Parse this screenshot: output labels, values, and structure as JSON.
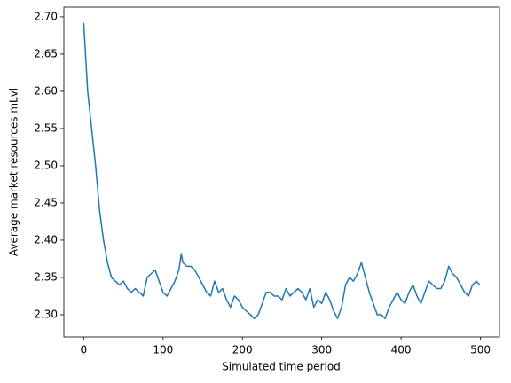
{
  "chart_data": {
    "type": "line",
    "xlabel": "Simulated time period",
    "ylabel": "Average market resources mLvl",
    "color": "#1f77b4",
    "x": [
      0,
      5,
      10,
      15,
      20,
      25,
      30,
      35,
      40,
      45,
      50,
      55,
      60,
      65,
      70,
      75,
      80,
      85,
      90,
      95,
      100,
      105,
      110,
      115,
      120,
      123,
      125,
      130,
      135,
      140,
      145,
      150,
      155,
      160,
      165,
      170,
      175,
      180,
      185,
      190,
      195,
      200,
      205,
      210,
      215,
      220,
      225,
      230,
      235,
      240,
      245,
      250,
      255,
      260,
      265,
      270,
      275,
      280,
      285,
      290,
      295,
      300,
      305,
      310,
      315,
      320,
      325,
      330,
      335,
      340,
      345,
      350,
      355,
      360,
      365,
      370,
      375,
      380,
      385,
      390,
      395,
      400,
      405,
      410,
      415,
      420,
      425,
      430,
      435,
      440,
      445,
      450,
      455,
      460,
      465,
      470,
      475,
      480,
      485,
      490,
      495,
      499
    ],
    "values": [
      2.692,
      2.6,
      2.55,
      2.5,
      2.44,
      2.4,
      2.37,
      2.35,
      2.345,
      2.34,
      2.345,
      2.335,
      2.33,
      2.335,
      2.33,
      2.325,
      2.35,
      2.355,
      2.36,
      2.345,
      2.33,
      2.325,
      2.335,
      2.345,
      2.36,
      2.382,
      2.37,
      2.365,
      2.365,
      2.36,
      2.35,
      2.34,
      2.33,
      2.325,
      2.345,
      2.33,
      2.335,
      2.32,
      2.31,
      2.325,
      2.32,
      2.31,
      2.305,
      2.3,
      2.295,
      2.3,
      2.315,
      2.33,
      2.33,
      2.325,
      2.325,
      2.32,
      2.335,
      2.325,
      2.33,
      2.335,
      2.33,
      2.32,
      2.335,
      2.31,
      2.32,
      2.315,
      2.33,
      2.32,
      2.305,
      2.295,
      2.31,
      2.34,
      2.35,
      2.345,
      2.355,
      2.37,
      2.35,
      2.33,
      2.315,
      2.3,
      2.3,
      2.295,
      2.31,
      2.32,
      2.33,
      2.32,
      2.315,
      2.33,
      2.34,
      2.325,
      2.315,
      2.33,
      2.345,
      2.34,
      2.335,
      2.335,
      2.345,
      2.365,
      2.355,
      2.35,
      2.34,
      2.33,
      2.325,
      2.34,
      2.345,
      2.34
    ],
    "xlim": [
      -25,
      524
    ],
    "ylim": [
      2.2702,
      2.713
    ],
    "xticks": [
      0,
      100,
      200,
      300,
      400,
      500
    ],
    "yticks": [
      {
        "value": 2.3,
        "label": "2.30"
      },
      {
        "value": 2.35,
        "label": "2.35"
      },
      {
        "value": 2.4,
        "label": "2.40"
      },
      {
        "value": 2.45,
        "label": "2.45"
      },
      {
        "value": 2.5,
        "label": "2.50"
      },
      {
        "value": 2.55,
        "label": "2.55"
      },
      {
        "value": 2.6,
        "label": "2.60"
      },
      {
        "value": 2.65,
        "label": "2.65"
      },
      {
        "value": 2.7,
        "label": "2.70"
      }
    ]
  }
}
